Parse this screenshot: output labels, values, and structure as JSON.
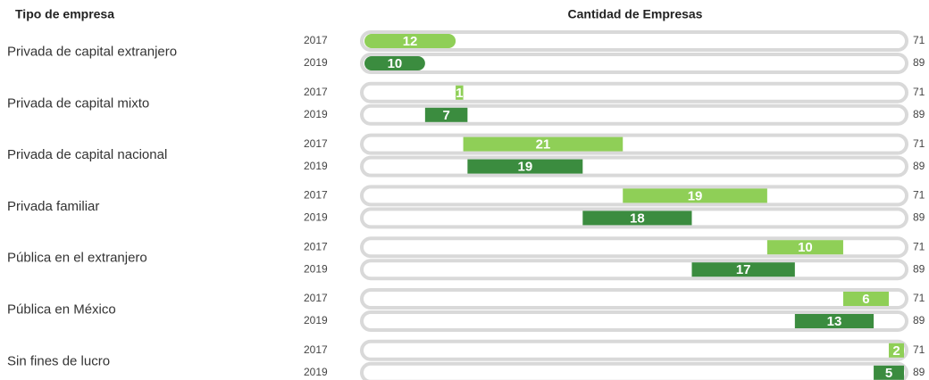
{
  "chart_data": {
    "type": "bar",
    "stacked": true,
    "title": "Cantidad de Empresas",
    "category_axis_title": "Tipo de empresa",
    "categories": [
      "Privada de capital extranjero",
      "Privada de capital mixto",
      "Privada de  capital  nacional",
      "Privada familiar",
      "Pública en el extranjero",
      "Pública en México",
      "Sin fines de lucro"
    ],
    "series": [
      {
        "name": "2017",
        "color": "#8fcf57",
        "total": 71,
        "values": [
          12,
          1,
          21,
          19,
          10,
          6,
          2
        ]
      },
      {
        "name": "2019",
        "color": "#3b8c3f",
        "total": 89,
        "values": [
          10,
          7,
          19,
          18,
          17,
          13,
          5
        ]
      }
    ]
  }
}
